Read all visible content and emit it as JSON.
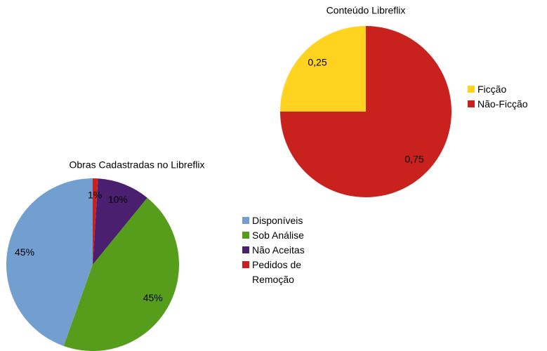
{
  "chart_data": [
    {
      "type": "pie",
      "title": "Conteúdo Libreflix",
      "categories": [
        "Ficção",
        "Não-Ficção"
      ],
      "values": [
        0.25,
        0.75
      ],
      "value_labels": [
        "0,25",
        "0,75"
      ],
      "colors": [
        "#ffd320",
        "#c9211e"
      ]
    },
    {
      "type": "pie",
      "title": "Obras Cadastradas no Libreflix",
      "categories": [
        "Disponíveis",
        "Sob Análise",
        "Não Aceitas",
        "Pedidos de Remoção"
      ],
      "values": [
        45,
        45,
        10,
        1
      ],
      "value_labels": [
        "45%",
        "45%",
        "10%",
        "1%"
      ],
      "colors": [
        "#729fcf",
        "#579d1c",
        "#4b1f6f",
        "#c9211e"
      ]
    }
  ]
}
